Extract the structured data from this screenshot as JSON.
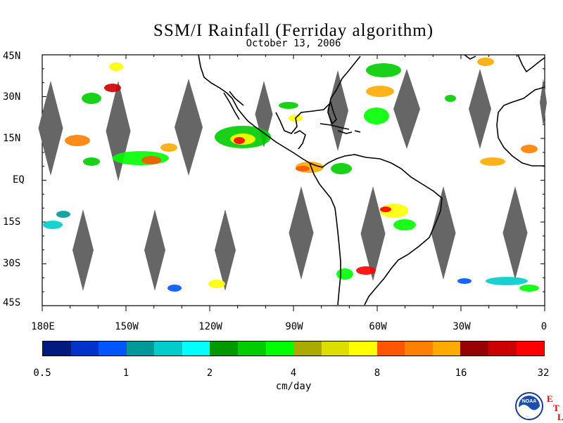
{
  "header": {
    "title": "SSM/I Rainfall (Ferriday algorithm)",
    "date": "October 13, 2006"
  },
  "map": {
    "lat_labels": [
      "45N",
      "30N",
      "15N",
      "EQ",
      "15S",
      "30S",
      "45S"
    ],
    "lon_labels": [
      "180E",
      "150W",
      "120W",
      "90W",
      "60W",
      "30W",
      "0"
    ],
    "missing_swath_color": "#666666",
    "coastline_color": "#000000"
  },
  "legend": {
    "colors": [
      "#001a80",
      "#0033cc",
      "#0055ff",
      "#00999a",
      "#00cccc",
      "#00ffff",
      "#009900",
      "#00cc00",
      "#00ff00",
      "#aaaa00",
      "#dddd00",
      "#ffff00",
      "#ff5500",
      "#ff8000",
      "#ffaa00",
      "#990000",
      "#cc0000",
      "#ff0000"
    ],
    "tick_labels": [
      "0.5",
      "1",
      "2",
      "4",
      "8",
      "16",
      "32"
    ],
    "units": "cm/day"
  },
  "logo": {
    "noaa_text": "NOAA",
    "etl_letters": [
      "E",
      "T",
      "L"
    ]
  }
}
